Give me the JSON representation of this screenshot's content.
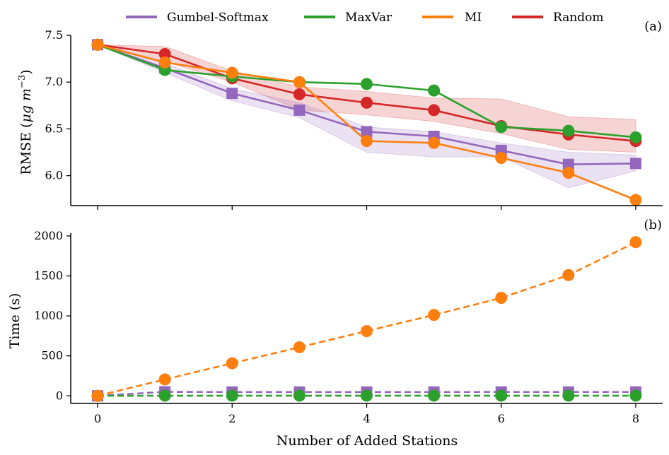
{
  "legend": [
    {
      "name": "Gumbel-Softmax",
      "color": "#9467bd"
    },
    {
      "name": "MaxVar",
      "color": "#2ca02c"
    },
    {
      "name": "MI",
      "color": "#ff7f0e"
    },
    {
      "name": "Random",
      "color": "#d62728"
    }
  ],
  "xlabel": "Number of Added Stations",
  "chart_data": [
    {
      "type": "line",
      "panel": "(a)",
      "ylabel_main": "RMSE (",
      "ylabel_unit": "μg m",
      "ylabel_exp": "−3",
      "ylabel_close": ")",
      "x": [
        0,
        1,
        2,
        3,
        4,
        5,
        6,
        7,
        8
      ],
      "xlim": [
        -0.4,
        8.4
      ],
      "ylim": [
        5.68,
        7.5
      ],
      "xticks": [
        0,
        2,
        4,
        6,
        8
      ],
      "yticks": [
        6.0,
        6.5,
        7.0,
        7.5
      ],
      "ytick_labels": [
        "6.0",
        "6.5",
        "7.0",
        "7.5"
      ],
      "grid": false,
      "series": [
        {
          "name": "Random",
          "color": "#d62728",
          "marker": "circle",
          "dash": false,
          "values": [
            7.4,
            7.3,
            7.04,
            6.87,
            6.78,
            6.7,
            6.53,
            6.44,
            6.37
          ],
          "band_low": [
            7.4,
            7.22,
            7.0,
            6.7,
            6.65,
            6.58,
            6.45,
            6.28,
            6.25
          ],
          "band_high": [
            7.4,
            7.38,
            7.12,
            6.95,
            6.9,
            6.83,
            6.82,
            6.63,
            6.6
          ]
        },
        {
          "name": "Gumbel-Softmax",
          "color": "#9467bd",
          "marker": "square",
          "dash": false,
          "values": [
            7.4,
            7.15,
            6.88,
            6.7,
            6.47,
            6.42,
            6.27,
            6.12,
            6.13
          ],
          "band_low": [
            7.4,
            7.1,
            6.8,
            6.62,
            6.25,
            6.2,
            6.2,
            5.87,
            6.05
          ],
          "band_high": [
            7.4,
            7.2,
            6.93,
            6.78,
            6.52,
            6.47,
            6.35,
            6.25,
            6.22
          ]
        },
        {
          "name": "MaxVar",
          "color": "#2ca02c",
          "marker": "circle",
          "dash": false,
          "values": [
            7.4,
            7.13,
            7.06,
            7.0,
            6.98,
            6.91,
            6.52,
            6.48,
            6.41
          ]
        },
        {
          "name": "MI",
          "color": "#ff7f0e",
          "marker": "circle",
          "dash": false,
          "values": [
            7.4,
            7.21,
            7.1,
            7.0,
            6.37,
            6.35,
            6.19,
            6.03,
            5.74
          ]
        }
      ]
    },
    {
      "type": "line",
      "panel": "(b)",
      "ylabel": "Time (s)",
      "x": [
        0,
        1,
        2,
        3,
        4,
        5,
        6,
        7,
        8
      ],
      "xlim": [
        -0.4,
        8.4
      ],
      "ylim": [
        -95,
        2035
      ],
      "xticks": [
        0,
        2,
        4,
        6,
        8
      ],
      "yticks": [
        0,
        500,
        1000,
        1500,
        2000
      ],
      "ytick_labels": [
        "0",
        "500",
        "1000",
        "1500",
        "2000"
      ],
      "grid": false,
      "series": [
        {
          "name": "Gumbel-Softmax",
          "color": "#9467bd",
          "marker": "square",
          "dash": true,
          "values": [
            0,
            50,
            47,
            47,
            47,
            47,
            48,
            48,
            48
          ]
        },
        {
          "name": "MaxVar",
          "color": "#2ca02c",
          "marker": "circle",
          "dash": true,
          "values": [
            0,
            2,
            2,
            2,
            2,
            2,
            2,
            2,
            2
          ]
        },
        {
          "name": "MI",
          "color": "#ff7f0e",
          "marker": "circle",
          "dash": true,
          "values": [
            0,
            205,
            408,
            608,
            810,
            1012,
            1225,
            1510,
            1922
          ]
        }
      ]
    }
  ]
}
